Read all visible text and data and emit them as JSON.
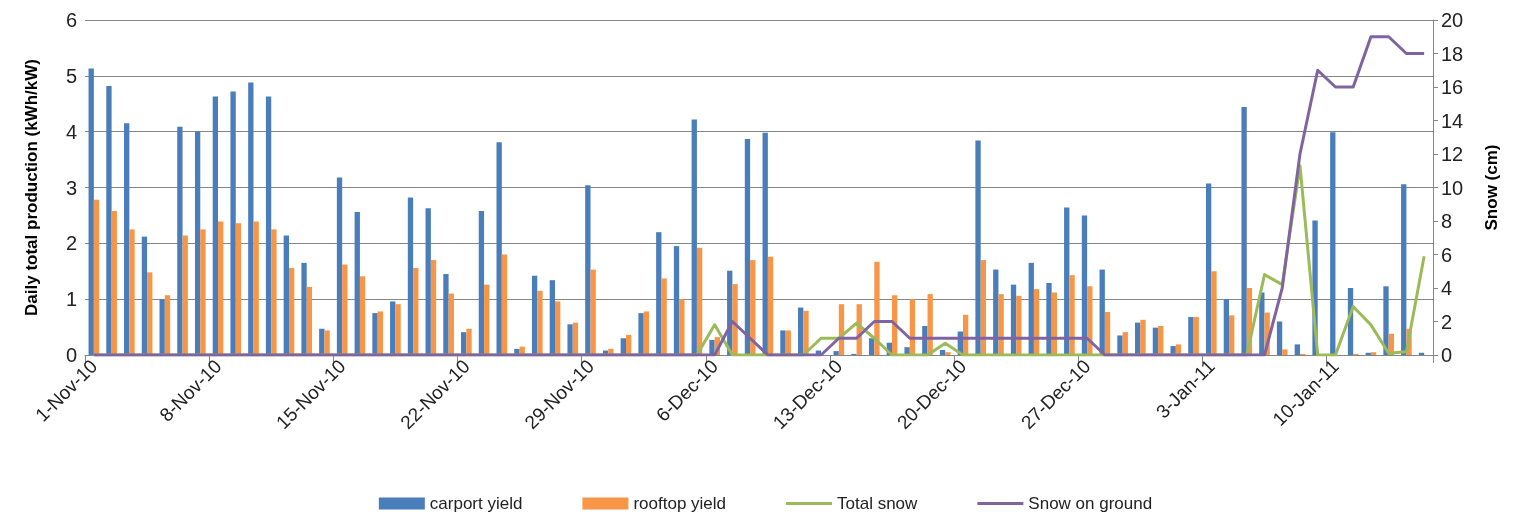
{
  "chart_data": {
    "type": "bar",
    "categories": [
      "1-Nov-10",
      null,
      null,
      null,
      null,
      null,
      null,
      "8-Nov-10",
      null,
      null,
      null,
      null,
      null,
      null,
      "15-Nov-10",
      null,
      null,
      null,
      null,
      null,
      null,
      "22-Nov-10",
      null,
      null,
      null,
      null,
      null,
      null,
      "29-Nov-10",
      null,
      null,
      null,
      null,
      null,
      null,
      "6-Dec-10",
      null,
      null,
      null,
      null,
      null,
      null,
      "13-Dec-10",
      null,
      null,
      null,
      null,
      null,
      null,
      "20-Dec-10",
      null,
      null,
      null,
      null,
      null,
      null,
      "27-Dec-10",
      null,
      null,
      null,
      null,
      null,
      null,
      "3-Jan-11",
      null,
      null,
      null,
      null,
      null,
      null,
      "10-Jan-11",
      null,
      null,
      null,
      null,
      null
    ],
    "ylabel": "Daily total production (kWh/kW)",
    "y2label": "Snow (cm)",
    "ylim": [
      0,
      6
    ],
    "yticks": [
      0,
      1,
      2,
      3,
      4,
      5,
      6
    ],
    "y2lim": [
      0,
      20
    ],
    "y2ticks": [
      0,
      2,
      4,
      6,
      8,
      10,
      12,
      14,
      16,
      18,
      20
    ],
    "grid": "y",
    "legend": "bottom",
    "series": [
      {
        "name": "carport yield",
        "color": "#4a7ebb",
        "values": [
          5.13,
          4.82,
          4.15,
          2.12,
          1.0,
          4.09,
          4.0,
          4.63,
          4.72,
          4.88,
          4.63,
          2.14,
          1.65,
          0.47,
          3.18,
          2.56,
          0.75,
          0.96,
          2.82,
          2.63,
          1.45,
          0.41,
          2.58,
          3.81,
          0.11,
          1.42,
          1.34,
          0.55,
          3.04,
          0.08,
          0.3,
          0.75,
          2.2,
          1.95,
          4.22,
          0.27,
          1.51,
          3.87,
          3.98,
          0.44,
          0.85,
          0.08,
          0.07,
          0.02,
          0.3,
          0.22,
          0.14,
          0.52,
          0.09,
          0.42,
          3.84,
          1.53,
          1.26,
          1.65,
          1.29,
          2.64,
          2.5,
          1.53,
          0.35,
          0.58,
          0.49,
          0.16,
          0.68,
          3.07,
          1.0,
          4.44,
          1.12,
          0.6,
          0.19,
          2.41,
          3.99,
          1.2,
          0.04,
          1.23,
          3.06,
          0.04
        ]
      },
      {
        "name": "rooftop yield",
        "color": "#f79646",
        "values": [
          2.78,
          2.58,
          2.25,
          1.48,
          1.07,
          2.14,
          2.25,
          2.39,
          2.36,
          2.39,
          2.25,
          1.56,
          1.22,
          0.44,
          1.62,
          1.41,
          0.78,
          0.91,
          1.56,
          1.7,
          1.1,
          0.47,
          1.26,
          1.8,
          0.15,
          1.15,
          0.96,
          0.58,
          1.53,
          0.11,
          0.36,
          0.78,
          1.37,
          1.0,
          1.92,
          0.32,
          1.27,
          1.7,
          1.76,
          0.44,
          0.79,
          0,
          0.91,
          0.91,
          1.67,
          1.07,
          1.0,
          1.09,
          0.05,
          0.72,
          1.7,
          1.09,
          1.06,
          1.18,
          1.12,
          1.43,
          1.23,
          0.77,
          0.41,
          0.63,
          0.52,
          0.19,
          0.68,
          1.5,
          0.71,
          1.2,
          0.76,
          0.1,
          0.02,
          0,
          0,
          0.02,
          0.05,
          0.38,
          0.47,
          0
        ]
      },
      {
        "name": "Total snow",
        "type": "line",
        "axis": "y2",
        "color": "#9bbb59",
        "values": [
          0,
          0,
          0,
          0,
          0,
          0,
          0,
          0,
          0,
          0,
          0,
          0,
          0,
          0,
          0,
          0,
          0,
          0,
          0,
          0,
          0,
          0,
          0,
          0,
          0,
          0,
          0,
          0,
          0,
          0,
          0,
          0,
          0,
          0,
          0,
          1.8,
          0,
          0,
          0,
          0,
          0,
          1.0,
          1.0,
          1.9,
          1.0,
          0,
          0,
          0,
          0.7,
          0,
          0,
          0,
          0,
          0,
          0,
          0,
          0,
          0,
          0,
          0,
          0,
          0,
          0,
          0,
          0,
          0,
          4.8,
          4.2,
          11.3,
          0,
          0,
          2.9,
          1.8,
          0.1,
          0.2,
          5.9
        ]
      },
      {
        "name": "Snow on ground",
        "type": "line",
        "axis": "y2",
        "color": "#8064a2",
        "values": [
          0,
          0,
          0,
          0,
          0,
          0,
          0,
          0,
          0,
          0,
          0,
          0,
          0,
          0,
          0,
          0,
          0,
          0,
          0,
          0,
          0,
          0,
          0,
          0,
          0,
          0,
          0,
          0,
          0,
          0,
          0,
          0,
          0,
          0,
          0,
          0,
          2,
          1,
          0,
          0,
          0,
          0,
          1,
          1,
          2,
          2,
          1,
          1,
          1,
          1,
          1,
          1,
          1,
          1,
          1,
          1,
          1,
          0,
          0,
          0,
          0,
          0,
          0,
          0,
          0,
          0,
          0,
          4,
          12,
          17,
          16,
          16,
          19,
          19,
          18,
          18
        ]
      }
    ]
  }
}
